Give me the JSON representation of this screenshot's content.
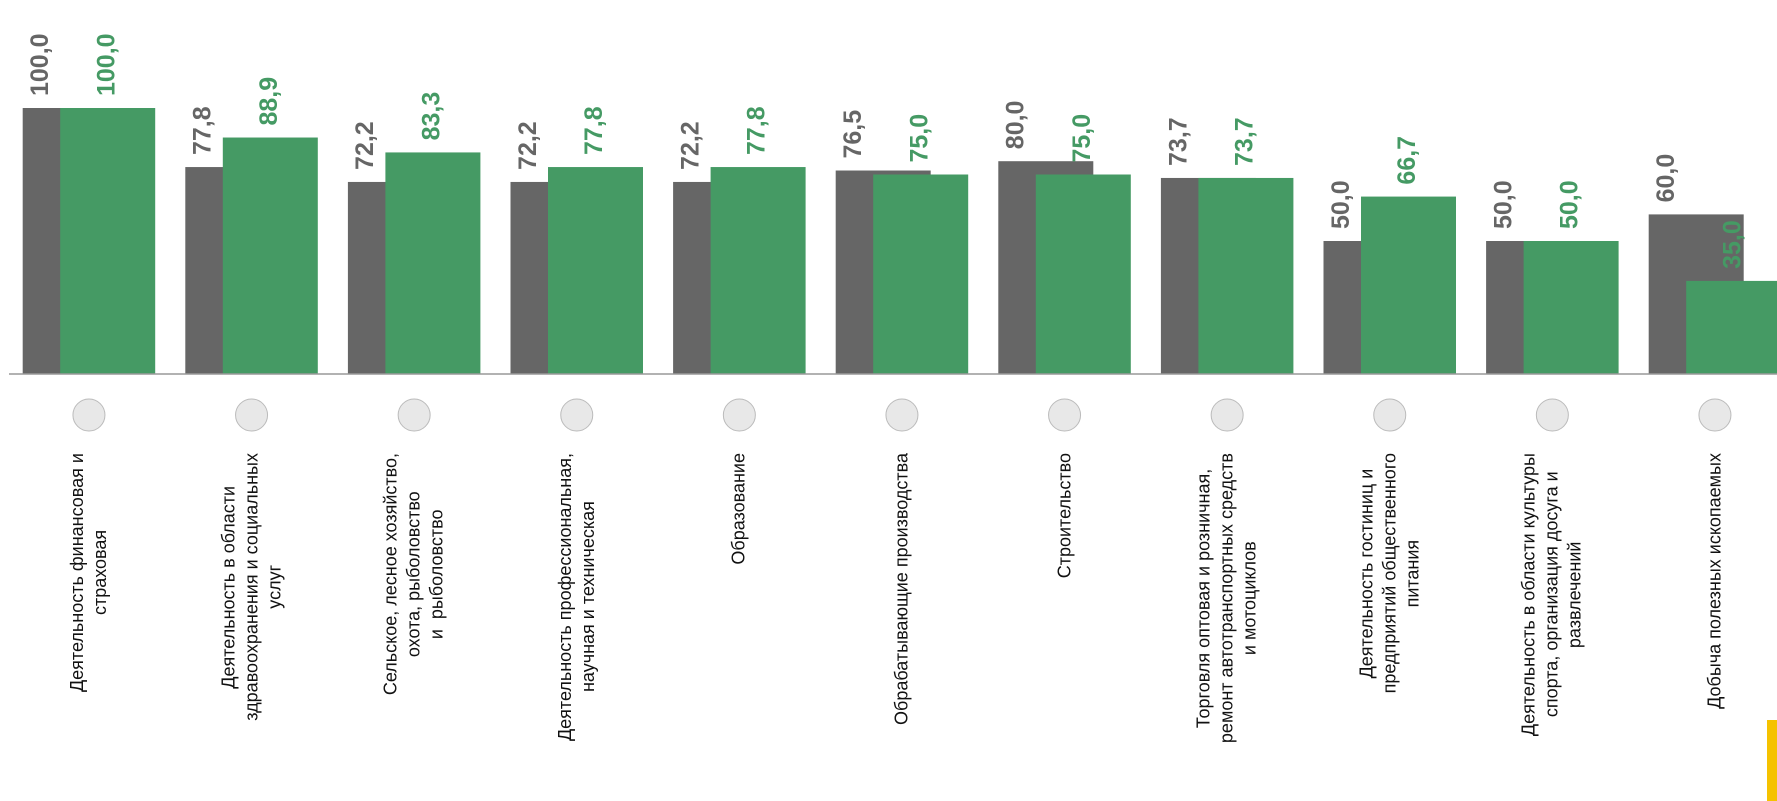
{
  "chart_data": {
    "type": "bar",
    "categories": [
      "Деятельность финансовая и\nстраховая",
      "Деятельность в области\nздравоохранения и социальных\nуслуг",
      "Сельское, лесное хозяйство,\nохота, рыболовство\nи  рыболовство",
      "Деятельность профессиональная,\nнаучная и техническая",
      "Образование",
      "Обрабатывающие производства",
      "Строительство",
      "Торговля оптовая и розничная,\nремонт автотранспортных средств\nи мотоциклов",
      "Деятельность гостиниц и\nпредприятий общественного\nпитания",
      "Деятельность в области культуры\nспорта, организация досуга и\nразвлечений",
      "Добыча полезных ископаемых"
    ],
    "series": [
      {
        "color": "#666666",
        "values": [
          100,
          77.8,
          72.2,
          72.2,
          72.2,
          76.5,
          80,
          73.7,
          50,
          50,
          60
        ],
        "value_labels": [
          "100,0",
          "77,8",
          "72,2",
          "72,2",
          "72,2",
          "76,5",
          "80,0",
          "73,7",
          "50,0",
          "50,0",
          "60,0"
        ]
      },
      {
        "color": "#459a64",
        "values": [
          100,
          88.9,
          83.3,
          77.8,
          77.8,
          75,
          75,
          73.7,
          66.7,
          50,
          35
        ],
        "value_labels": [
          "100,0",
          "88,9",
          "83,3",
          "77,8",
          "77,8",
          "75,0",
          "75,0",
          "73,7",
          "66,7",
          "50,0",
          "35,0"
        ]
      }
    ],
    "ylim": [
      0,
      100
    ]
  }
}
